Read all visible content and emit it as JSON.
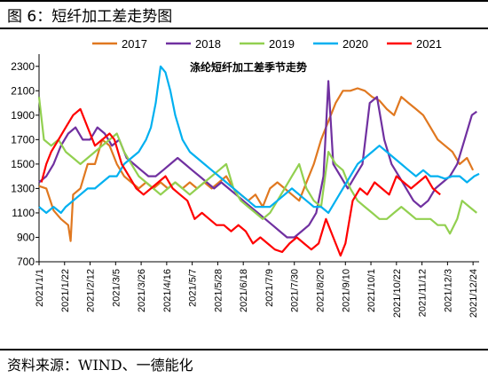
{
  "figure": {
    "caption": "图 6：短纤加工差走势图",
    "source": "资料来源：WIND、一德能化"
  },
  "chart_data": {
    "type": "line",
    "title": "涤纶短纤加工差季节走势",
    "xlabel": "",
    "ylabel": "",
    "x_ticks": [
      "2021/1/1",
      "2021/1/22",
      "2021/2/12",
      "2021/3/5",
      "2021/3/26",
      "2021/4/16",
      "2021/5/7",
      "2021/5/28",
      "2021/6/18",
      "2021/7/9",
      "2021/7/30",
      "2021/8/20",
      "2021/9/10",
      "2021/10/1",
      "2021/10/22",
      "2021/11/12",
      "2021/12/3",
      "2021/12/24"
    ],
    "y_ticks": [
      700,
      900,
      1100,
      1300,
      1500,
      1700,
      1900,
      2100,
      2300
    ],
    "ylim": [
      700,
      2400
    ],
    "xlim_days": [
      0,
      362
    ],
    "legend_position": "top",
    "grid": false,
    "series": [
      {
        "name": "2017",
        "color": "#E07820",
        "points": [
          [
            0,
            1320
          ],
          [
            6,
            1300
          ],
          [
            12,
            1120
          ],
          [
            18,
            1050
          ],
          [
            24,
            1000
          ],
          [
            26,
            870
          ],
          [
            28,
            1250
          ],
          [
            34,
            1300
          ],
          [
            40,
            1500
          ],
          [
            46,
            1500
          ],
          [
            52,
            1700
          ],
          [
            58,
            1650
          ],
          [
            64,
            1500
          ],
          [
            70,
            1400
          ],
          [
            76,
            1350
          ],
          [
            82,
            1300
          ],
          [
            88,
            1350
          ],
          [
            94,
            1300
          ],
          [
            100,
            1350
          ],
          [
            106,
            1300
          ],
          [
            112,
            1350
          ],
          [
            118,
            1300
          ],
          [
            124,
            1350
          ],
          [
            130,
            1300
          ],
          [
            136,
            1350
          ],
          [
            142,
            1300
          ],
          [
            148,
            1350
          ],
          [
            154,
            1400
          ],
          [
            160,
            1300
          ],
          [
            166,
            1250
          ],
          [
            172,
            1200
          ],
          [
            178,
            1250
          ],
          [
            184,
            1150
          ],
          [
            190,
            1300
          ],
          [
            196,
            1350
          ],
          [
            202,
            1300
          ],
          [
            208,
            1250
          ],
          [
            214,
            1200
          ],
          [
            220,
            1350
          ],
          [
            226,
            1500
          ],
          [
            232,
            1700
          ],
          [
            238,
            1850
          ],
          [
            244,
            2000
          ],
          [
            250,
            2100
          ],
          [
            256,
            2100
          ],
          [
            262,
            2120
          ],
          [
            268,
            2100
          ],
          [
            274,
            2050
          ],
          [
            280,
            2020
          ],
          [
            286,
            1950
          ],
          [
            292,
            1900
          ],
          [
            298,
            2050
          ],
          [
            304,
            2000
          ],
          [
            310,
            1950
          ],
          [
            316,
            1900
          ],
          [
            322,
            1800
          ],
          [
            328,
            1700
          ],
          [
            334,
            1650
          ],
          [
            340,
            1600
          ],
          [
            346,
            1500
          ],
          [
            352,
            1550
          ],
          [
            357,
            1450
          ]
        ]
      },
      {
        "name": "2018",
        "color": "#7030A0",
        "points": [
          [
            0,
            1350
          ],
          [
            6,
            1400
          ],
          [
            12,
            1500
          ],
          [
            18,
            1650
          ],
          [
            24,
            1750
          ],
          [
            30,
            1800
          ],
          [
            36,
            1700
          ],
          [
            42,
            1700
          ],
          [
            48,
            1800
          ],
          [
            54,
            1750
          ],
          [
            60,
            1650
          ],
          [
            66,
            1700
          ],
          [
            72,
            1550
          ],
          [
            78,
            1500
          ],
          [
            84,
            1450
          ],
          [
            90,
            1400
          ],
          [
            96,
            1400
          ],
          [
            102,
            1450
          ],
          [
            108,
            1500
          ],
          [
            114,
            1550
          ],
          [
            120,
            1500
          ],
          [
            126,
            1450
          ],
          [
            132,
            1400
          ],
          [
            138,
            1350
          ],
          [
            144,
            1300
          ],
          [
            150,
            1350
          ],
          [
            156,
            1300
          ],
          [
            162,
            1250
          ],
          [
            168,
            1200
          ],
          [
            174,
            1150
          ],
          [
            180,
            1100
          ],
          [
            186,
            1050
          ],
          [
            192,
            1000
          ],
          [
            198,
            950
          ],
          [
            204,
            900
          ],
          [
            210,
            900
          ],
          [
            216,
            950
          ],
          [
            222,
            1000
          ],
          [
            228,
            1100
          ],
          [
            234,
            1400
          ],
          [
            238,
            2180
          ],
          [
            242,
            1500
          ],
          [
            248,
            1400
          ],
          [
            254,
            1300
          ],
          [
            260,
            1400
          ],
          [
            266,
            1500
          ],
          [
            272,
            2000
          ],
          [
            278,
            2050
          ],
          [
            284,
            1700
          ],
          [
            290,
            1500
          ],
          [
            296,
            1400
          ],
          [
            302,
            1300
          ],
          [
            308,
            1200
          ],
          [
            314,
            1150
          ],
          [
            320,
            1200
          ],
          [
            326,
            1300
          ],
          [
            332,
            1350
          ],
          [
            338,
            1400
          ],
          [
            344,
            1500
          ],
          [
            350,
            1700
          ],
          [
            356,
            1900
          ],
          [
            360,
            1930
          ]
        ]
      },
      {
        "name": "2019",
        "color": "#92D050",
        "points": [
          [
            0,
            2050
          ],
          [
            4,
            1700
          ],
          [
            10,
            1650
          ],
          [
            16,
            1700
          ],
          [
            22,
            1600
          ],
          [
            28,
            1550
          ],
          [
            34,
            1500
          ],
          [
            40,
            1550
          ],
          [
            46,
            1600
          ],
          [
            52,
            1650
          ],
          [
            58,
            1700
          ],
          [
            64,
            1750
          ],
          [
            70,
            1600
          ],
          [
            76,
            1500
          ],
          [
            82,
            1400
          ],
          [
            88,
            1350
          ],
          [
            94,
            1300
          ],
          [
            100,
            1250
          ],
          [
            106,
            1300
          ],
          [
            112,
            1350
          ],
          [
            118,
            1300
          ],
          [
            124,
            1250
          ],
          [
            130,
            1300
          ],
          [
            136,
            1350
          ],
          [
            142,
            1400
          ],
          [
            148,
            1450
          ],
          [
            154,
            1500
          ],
          [
            160,
            1300
          ],
          [
            166,
            1200
          ],
          [
            172,
            1150
          ],
          [
            178,
            1100
          ],
          [
            184,
            1050
          ],
          [
            190,
            1100
          ],
          [
            196,
            1200
          ],
          [
            202,
            1300
          ],
          [
            208,
            1400
          ],
          [
            214,
            1500
          ],
          [
            220,
            1300
          ],
          [
            226,
            1200
          ],
          [
            232,
            1150
          ],
          [
            238,
            1600
          ],
          [
            244,
            1500
          ],
          [
            250,
            1450
          ],
          [
            256,
            1300
          ],
          [
            262,
            1200
          ],
          [
            268,
            1150
          ],
          [
            274,
            1100
          ],
          [
            280,
            1050
          ],
          [
            286,
            1050
          ],
          [
            292,
            1100
          ],
          [
            298,
            1150
          ],
          [
            304,
            1100
          ],
          [
            310,
            1050
          ],
          [
            316,
            1050
          ],
          [
            322,
            1050
          ],
          [
            328,
            1000
          ],
          [
            334,
            1000
          ],
          [
            338,
            930
          ],
          [
            344,
            1050
          ],
          [
            348,
            1200
          ],
          [
            354,
            1150
          ],
          [
            360,
            1100
          ]
        ]
      },
      {
        "name": "2020",
        "color": "#00B0F0",
        "points": [
          [
            0,
            1150
          ],
          [
            6,
            1100
          ],
          [
            12,
            1150
          ],
          [
            18,
            1100
          ],
          [
            22,
            1150
          ],
          [
            28,
            1200
          ],
          [
            34,
            1250
          ],
          [
            40,
            1300
          ],
          [
            46,
            1300
          ],
          [
            52,
            1350
          ],
          [
            58,
            1400
          ],
          [
            64,
            1400
          ],
          [
            70,
            1500
          ],
          [
            76,
            1550
          ],
          [
            82,
            1600
          ],
          [
            88,
            1700
          ],
          [
            92,
            1800
          ],
          [
            96,
            2000
          ],
          [
            100,
            2300
          ],
          [
            104,
            2250
          ],
          [
            108,
            2100
          ],
          [
            112,
            1900
          ],
          [
            118,
            1700
          ],
          [
            124,
            1600
          ],
          [
            130,
            1550
          ],
          [
            136,
            1500
          ],
          [
            142,
            1450
          ],
          [
            148,
            1400
          ],
          [
            154,
            1350
          ],
          [
            160,
            1300
          ],
          [
            166,
            1250
          ],
          [
            172,
            1200
          ],
          [
            178,
            1150
          ],
          [
            184,
            1150
          ],
          [
            190,
            1150
          ],
          [
            196,
            1200
          ],
          [
            202,
            1250
          ],
          [
            208,
            1300
          ],
          [
            214,
            1250
          ],
          [
            220,
            1200
          ],
          [
            226,
            1150
          ],
          [
            232,
            1150
          ],
          [
            238,
            1100
          ],
          [
            244,
            1200
          ],
          [
            250,
            1300
          ],
          [
            256,
            1400
          ],
          [
            262,
            1500
          ],
          [
            268,
            1550
          ],
          [
            274,
            1600
          ],
          [
            280,
            1650
          ],
          [
            286,
            1600
          ],
          [
            292,
            1550
          ],
          [
            298,
            1500
          ],
          [
            304,
            1450
          ],
          [
            310,
            1400
          ],
          [
            316,
            1450
          ],
          [
            322,
            1400
          ],
          [
            328,
            1400
          ],
          [
            334,
            1380
          ],
          [
            340,
            1400
          ],
          [
            346,
            1400
          ],
          [
            352,
            1350
          ],
          [
            358,
            1400
          ],
          [
            362,
            1420
          ]
        ]
      },
      {
        "name": "2021",
        "color": "#FF0000",
        "points": [
          [
            2,
            1350
          ],
          [
            6,
            1500
          ],
          [
            10,
            1600
          ],
          [
            16,
            1700
          ],
          [
            22,
            1800
          ],
          [
            28,
            1900
          ],
          [
            34,
            1950
          ],
          [
            40,
            1800
          ],
          [
            46,
            1650
          ],
          [
            52,
            1700
          ],
          [
            58,
            1750
          ],
          [
            62,
            1700
          ],
          [
            68,
            1500
          ],
          [
            74,
            1400
          ],
          [
            80,
            1300
          ],
          [
            86,
            1250
          ],
          [
            92,
            1300
          ],
          [
            98,
            1350
          ],
          [
            104,
            1400
          ],
          [
            110,
            1300
          ],
          [
            116,
            1250
          ],
          [
            122,
            1200
          ],
          [
            128,
            1050
          ],
          [
            134,
            1100
          ],
          [
            140,
            1050
          ],
          [
            146,
            1000
          ],
          [
            152,
            1000
          ],
          [
            158,
            950
          ],
          [
            164,
            1000
          ],
          [
            170,
            950
          ],
          [
            176,
            850
          ],
          [
            182,
            900
          ],
          [
            188,
            850
          ],
          [
            194,
            800
          ],
          [
            200,
            780
          ],
          [
            206,
            850
          ],
          [
            212,
            900
          ],
          [
            218,
            850
          ],
          [
            224,
            800
          ],
          [
            230,
            850
          ],
          [
            236,
            1050
          ],
          [
            242,
            900
          ],
          [
            248,
            750
          ],
          [
            252,
            850
          ],
          [
            258,
            1200
          ],
          [
            264,
            1300
          ],
          [
            270,
            1250
          ],
          [
            276,
            1350
          ],
          [
            282,
            1300
          ],
          [
            288,
            1250
          ],
          [
            294,
            1400
          ],
          [
            300,
            1350
          ],
          [
            306,
            1300
          ],
          [
            312,
            1350
          ],
          [
            318,
            1400
          ],
          [
            324,
            1300
          ],
          [
            330,
            1250
          ]
        ]
      }
    ]
  }
}
